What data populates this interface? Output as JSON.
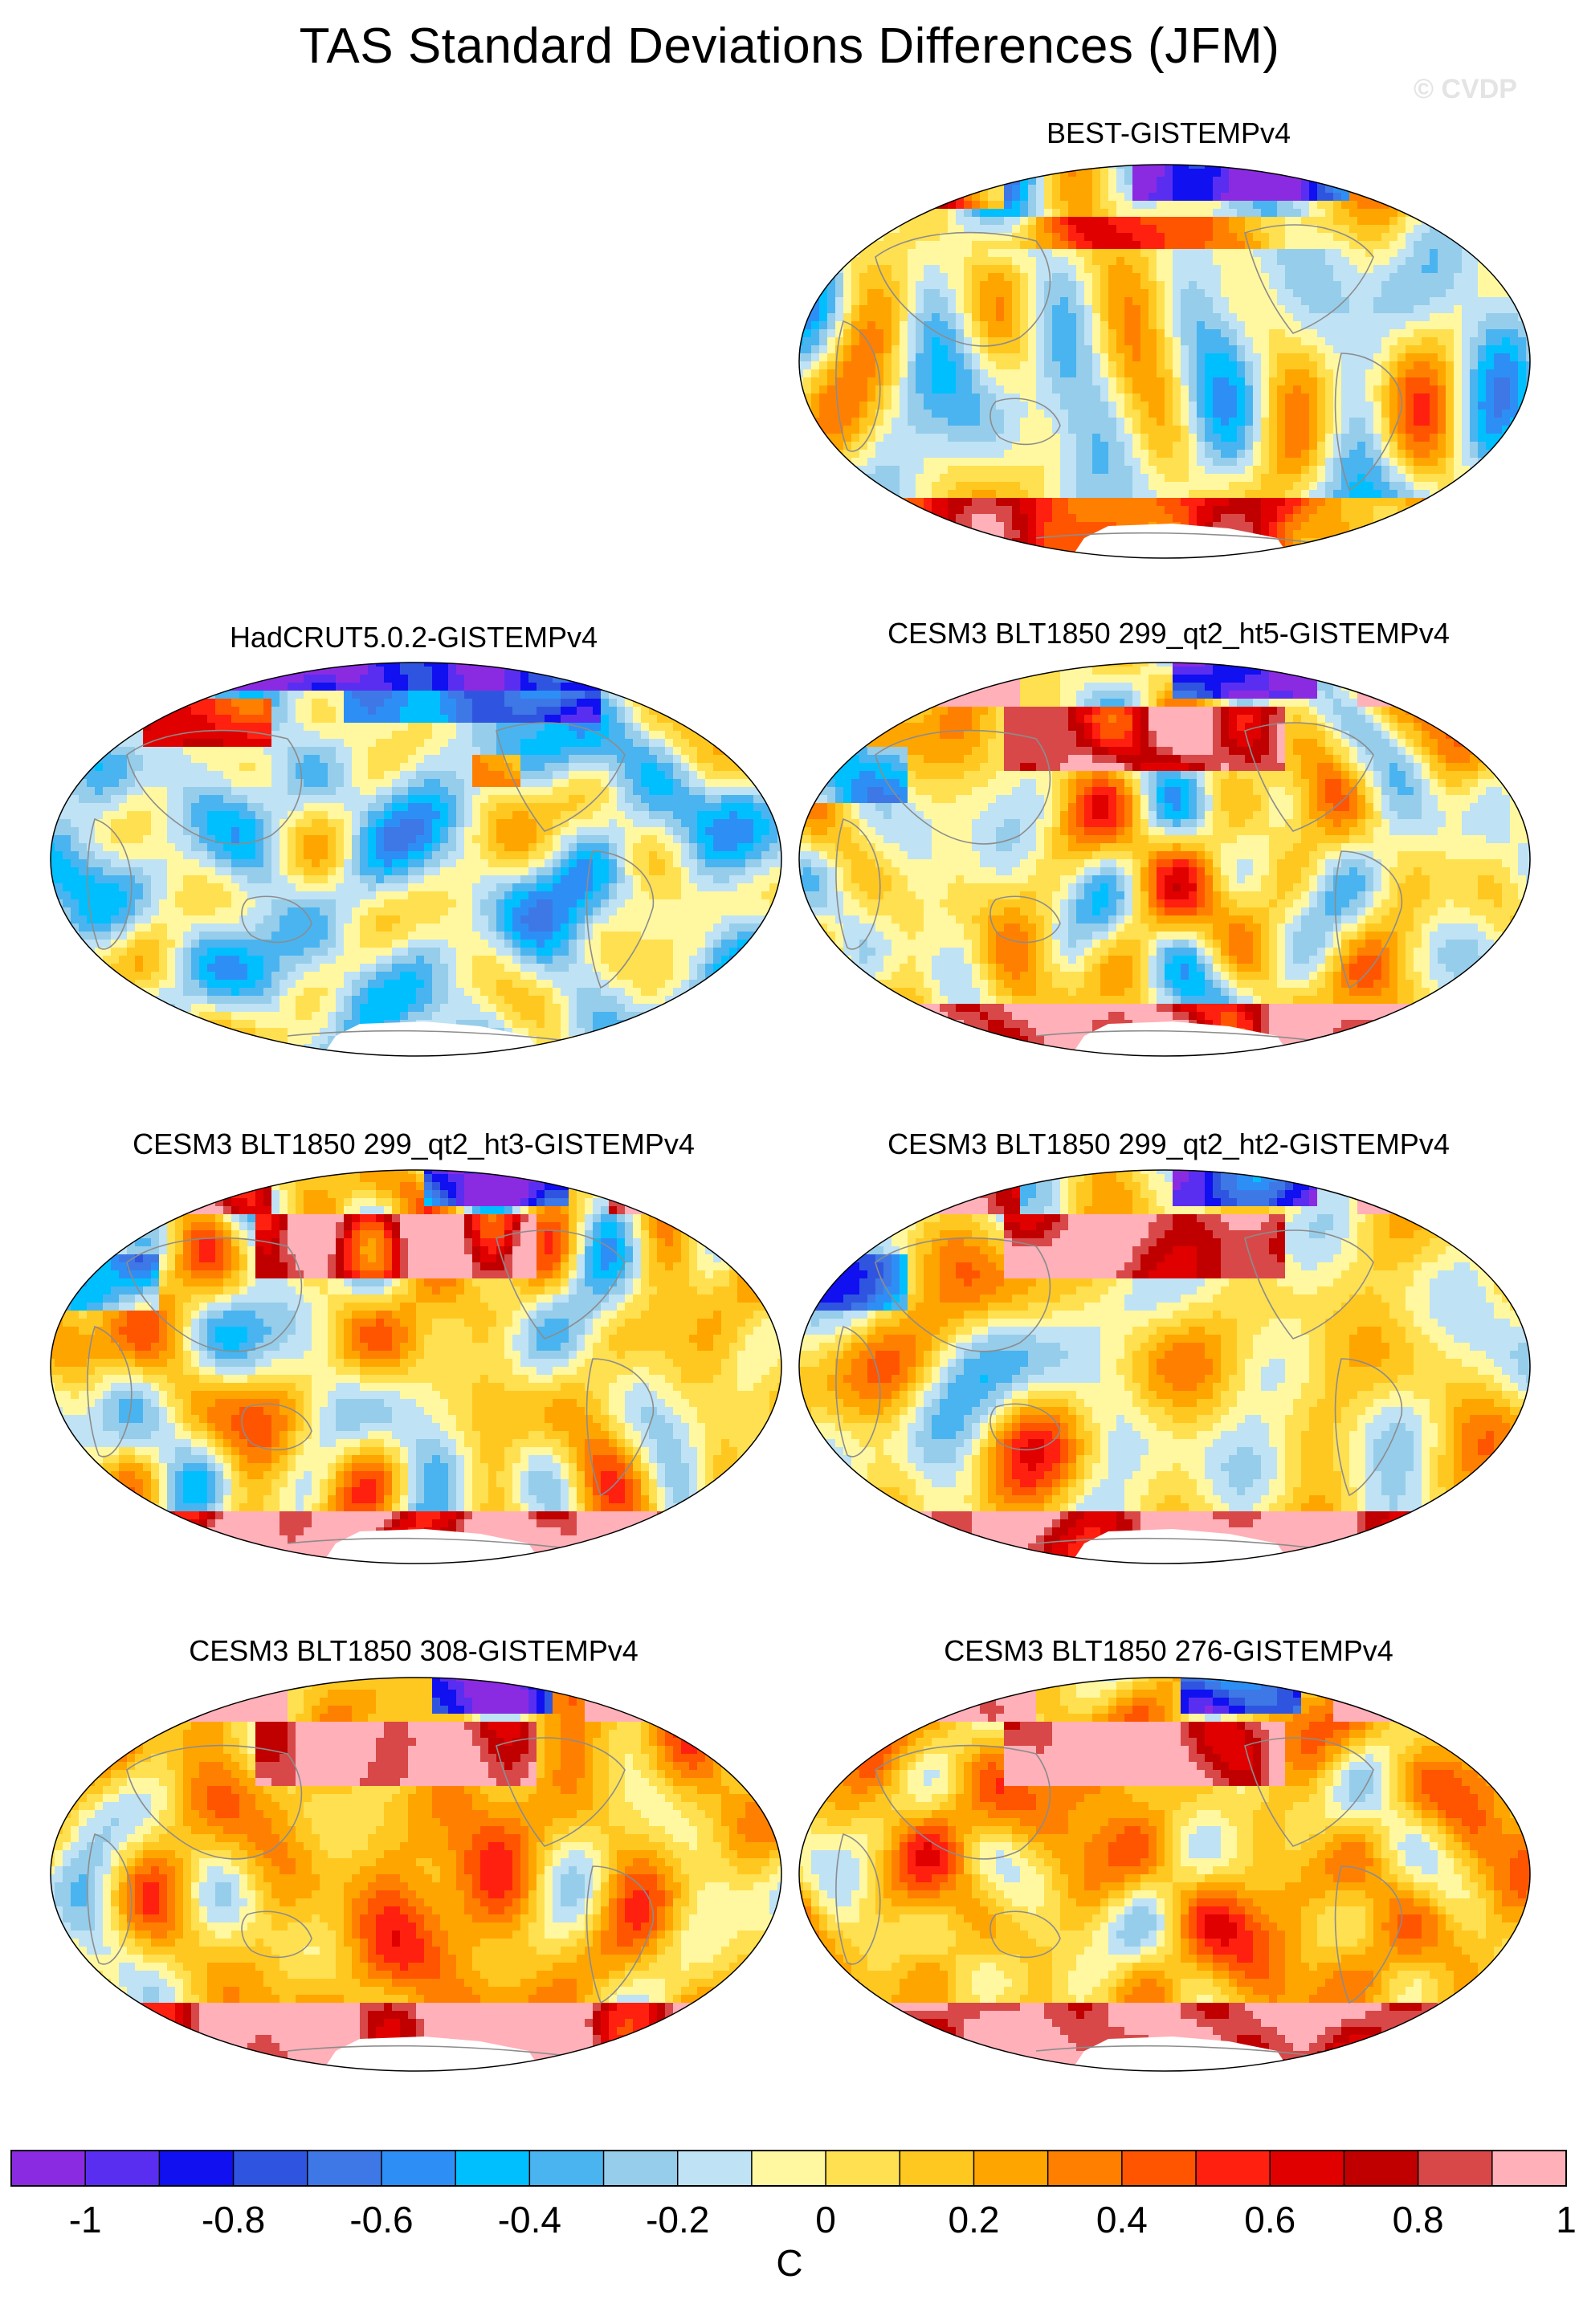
{
  "title": "TAS Standard Deviations Differences (JFM)",
  "credit": "© CVDP",
  "panels": [
    {
      "title": "BEST-GISTEMPv4",
      "style": "mixed"
    },
    {
      "title": "HadCRUT5.0.2-GISTEMPv4",
      "style": "cool"
    },
    {
      "title": "CESM3 BLT1850 299_qt2_ht5-GISTEMPv4",
      "style": "warm"
    },
    {
      "title": "CESM3 BLT1850 299_qt2_ht3-GISTEMPv4",
      "style": "warm"
    },
    {
      "title": "CESM3 BLT1850 299_qt2_ht2-GISTEMPv4",
      "style": "warm"
    },
    {
      "title": "CESM3 BLT1850 308-GISTEMPv4",
      "style": "hot"
    },
    {
      "title": "CESM3 BLT1850 276-GISTEMPv4",
      "style": "hot"
    }
  ],
  "colorbar": {
    "unit": "C",
    "ticks": [
      "-1",
      "-0.8",
      "-0.6",
      "-0.4",
      "-0.2",
      "0",
      "0.2",
      "0.4",
      "0.6",
      "0.8",
      "1"
    ],
    "colors": [
      "#8a2be2",
      "#5a2ef0",
      "#1010f0",
      "#2f55e0",
      "#3d78e6",
      "#2d8ff5",
      "#00bfff",
      "#4ab4f0",
      "#96cdea",
      "#bfe2f5",
      "#fff8a0",
      "#ffe050",
      "#ffc820",
      "#ffa500",
      "#ff8000",
      "#ff5500",
      "#ff2010",
      "#e00000",
      "#c00000",
      "#d84848",
      "#ffb0b8"
    ]
  },
  "palette": {
    "land_outline": "#8c8c8c",
    "missing": "#ffffff"
  }
}
